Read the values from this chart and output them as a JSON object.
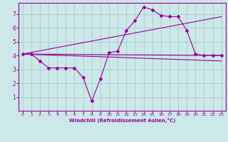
{
  "xlabel": "Windchill (Refroidissement éolien,°C)",
  "bg_color": "#cce8e8",
  "grid_color": "#aacccc",
  "line_color": "#990099",
  "xlim": [
    -0.5,
    23.5
  ],
  "ylim": [
    0,
    7.8
  ],
  "xticks": [
    0,
    1,
    2,
    3,
    4,
    5,
    6,
    7,
    8,
    9,
    10,
    11,
    12,
    13,
    14,
    15,
    16,
    17,
    18,
    19,
    20,
    21,
    22,
    23
  ],
  "yticks": [
    1,
    2,
    3,
    4,
    5,
    6,
    7
  ],
  "line1_x": [
    0,
    1,
    2,
    3,
    4,
    5,
    6,
    7,
    8,
    9,
    10,
    11,
    12,
    13,
    14,
    15,
    16,
    17,
    18,
    19,
    20,
    21,
    22,
    23
  ],
  "line1_y": [
    4.1,
    4.1,
    3.6,
    3.1,
    3.1,
    3.1,
    3.1,
    2.4,
    0.7,
    2.3,
    4.2,
    4.3,
    5.8,
    6.5,
    7.5,
    7.3,
    6.9,
    6.8,
    6.8,
    5.8,
    4.1,
    4.0,
    4.0,
    4.0
  ],
  "line2_x": [
    0,
    23
  ],
  "line2_y": [
    4.1,
    4.0
  ],
  "line3_x": [
    0,
    23
  ],
  "line3_y": [
    4.1,
    6.8
  ],
  "line4_x": [
    0,
    23
  ],
  "line4_y": [
    4.1,
    3.6
  ]
}
